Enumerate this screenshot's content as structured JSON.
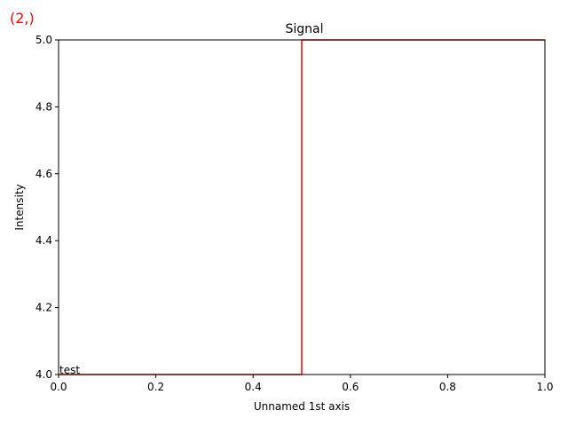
{
  "corner_label": "(2,)",
  "chart_data": {
    "type": "line",
    "title": "Signal",
    "xlabel": "Unnamed 1st axis",
    "ylabel": "Intensity",
    "xlim": [
      0.0,
      1.0
    ],
    "ylim": [
      4.0,
      5.0
    ],
    "xticks": [
      "0.0",
      "0.2",
      "0.4",
      "0.6",
      "0.8",
      "1.0"
    ],
    "yticks": [
      "4.0",
      "4.2",
      "4.4",
      "4.6",
      "4.8",
      "5.0"
    ],
    "grid": false,
    "series": [
      {
        "color": "#ff0000",
        "drawstyle": "steps-mid",
        "x": [
          0.0,
          1.0
        ],
        "y": [
          4.0,
          5.0
        ]
      }
    ],
    "annotation": "test"
  },
  "colors": {
    "accent": "#ff0000",
    "axes": "#000000"
  }
}
